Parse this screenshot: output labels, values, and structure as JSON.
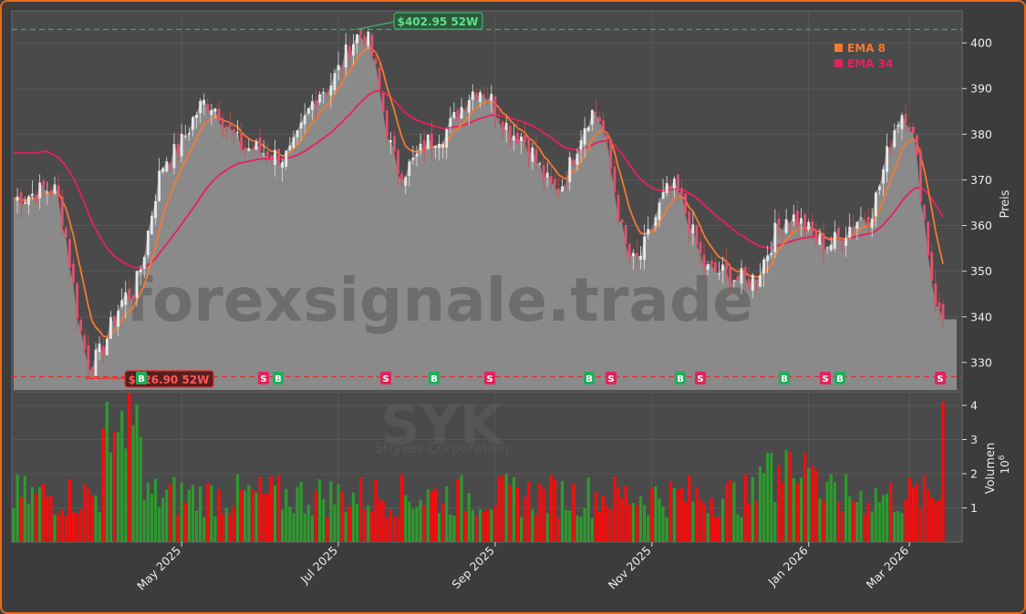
{
  "chart_data": {
    "type": "candlestick",
    "ticker_watermark": "SYK",
    "company_watermark": "Stryker Corporation",
    "site_watermark": "forexsignale.trade",
    "ylabel": "Preis",
    "volume_label": "Volumen",
    "volume_unit": "10",
    "volume_exp": "6",
    "price_ylim": [
      324,
      407
    ],
    "price_ticks": [
      330,
      340,
      350,
      360,
      370,
      380,
      390,
      400
    ],
    "volume_ylim": [
      0,
      4.4
    ],
    "volume_ticks": [
      1,
      2,
      3,
      4
    ],
    "x_ticks": [
      "May 2025",
      "Jul 2025",
      "Sep 2025",
      "Nov 2025",
      "Jan 2026",
      "Mar 2026"
    ],
    "legend": [
      {
        "label": "EMA 8",
        "color": "#f47a30"
      },
      {
        "label": "EMA 34",
        "color": "#e8205e"
      }
    ],
    "high_52w": {
      "label": "$402.95 52W",
      "value": 402.95,
      "color": "#3cb371"
    },
    "low_52w": {
      "label": "$326.90 52W",
      "value": 326.9,
      "color": "#e03030"
    },
    "last_close": 339.5,
    "signals": [
      "B",
      "S",
      "B",
      "S",
      "B",
      "S",
      "B",
      "S",
      "B",
      "S",
      "B",
      "S",
      "B",
      "S",
      "B",
      "S"
    ],
    "price_anchors": [
      {
        "date": "Mar 2025",
        "close": 366
      },
      {
        "date": "early Apr 2025",
        "close": 368
      },
      {
        "date": "mid Apr 2025",
        "close": 330
      },
      {
        "date": "late Apr 2025",
        "close": 345
      },
      {
        "date": "May 2025",
        "close": 375
      },
      {
        "date": "mid May 2025",
        "close": 387
      },
      {
        "date": "early Jun 2025",
        "close": 377
      },
      {
        "date": "late Jun 2025",
        "close": 375
      },
      {
        "date": "Jul 2025",
        "close": 390
      },
      {
        "date": "late Jul 2025",
        "close": 402
      },
      {
        "date": "early Aug 2025",
        "close": 372
      },
      {
        "date": "mid Aug 2025",
        "close": 380
      },
      {
        "date": "late Aug 2025",
        "close": 390
      },
      {
        "date": "Sep 2025",
        "close": 380
      },
      {
        "date": "late Sep 2025",
        "close": 368
      },
      {
        "date": "mid Oct 2025",
        "close": 385
      },
      {
        "date": "Nov 2025",
        "close": 352
      },
      {
        "date": "mid Nov 2025",
        "close": 368
      },
      {
        "date": "early Dec 2025",
        "close": 350
      },
      {
        "date": "late Dec 2025",
        "close": 348
      },
      {
        "date": "Jan 2026",
        "close": 362
      },
      {
        "date": "late Jan 2026",
        "close": 356
      },
      {
        "date": "early Feb 2026",
        "close": 362
      },
      {
        "date": "late Feb 2026",
        "close": 385
      },
      {
        "date": "Mar 2026",
        "close": 339.5
      }
    ]
  }
}
